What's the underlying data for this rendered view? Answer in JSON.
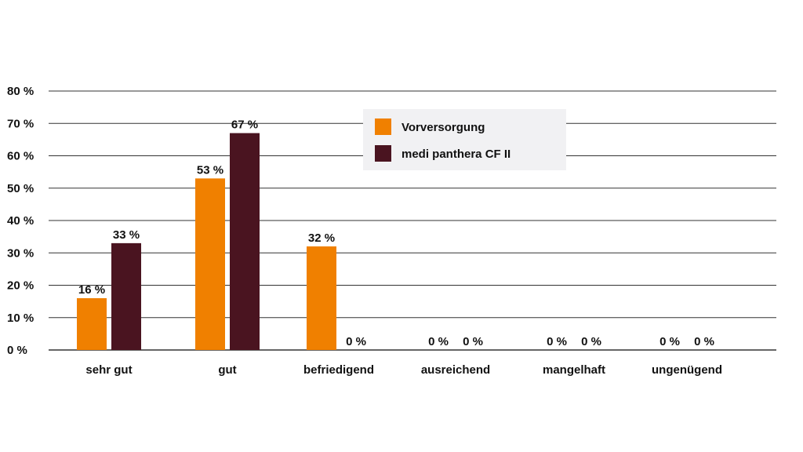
{
  "chart_data": {
    "type": "bar",
    "title": "",
    "xlabel": "",
    "ylabel": "",
    "ylim": [
      0,
      80
    ],
    "y_ticks": [
      0,
      10,
      20,
      30,
      40,
      50,
      60,
      70,
      80
    ],
    "y_tick_labels": [
      "0 %",
      "10 %",
      "20 %",
      "30 %",
      "40 %",
      "50 %",
      "60 %",
      "70 %",
      "80 %"
    ],
    "grid": true,
    "legend_position": "top-center",
    "categories": [
      "sehr gut",
      "gut",
      "befriedigend",
      "ausreichend",
      "mangelhaft",
      "ungenügend"
    ],
    "series": [
      {
        "name": "Vorversorgung",
        "color": "#F08000",
        "values": [
          16,
          53,
          32,
          0,
          0,
          0
        ],
        "labels": [
          "16 %",
          "53 %",
          "32 %",
          "0 %",
          "0 %",
          "0 %"
        ]
      },
      {
        "name": "medi panthera CF II",
        "color": "#4A1420",
        "values": [
          33,
          67,
          0,
          0,
          0,
          0
        ],
        "labels": [
          "33 %",
          "67 %",
          "0 %",
          "0 %",
          "0 %",
          "0 %"
        ]
      }
    ],
    "colors": {
      "grid": "#333333",
      "legend_background": "#F1F1F3",
      "text": "#111111"
    }
  }
}
